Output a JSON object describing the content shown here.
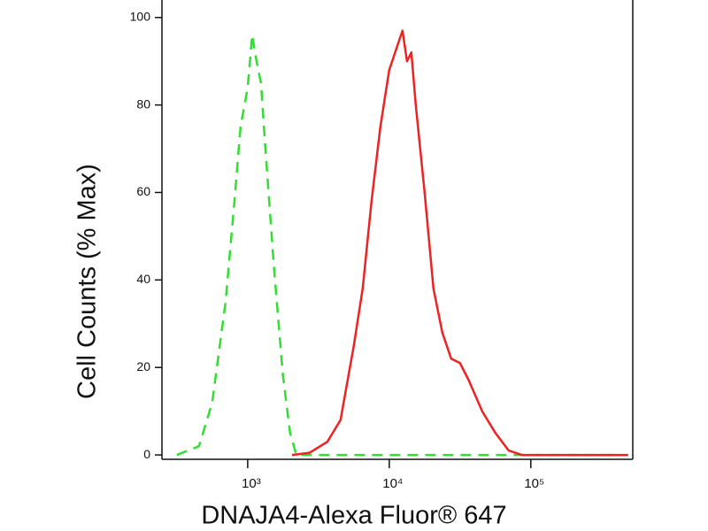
{
  "chart_data": {
    "type": "line",
    "xlabel": "DNAJA4-Alexa Fluor® 647",
    "ylabel": "Cell Counts (% Max)",
    "xscale": "log",
    "xlim": [
      248,
      525000
    ],
    "ylim": [
      -1,
      104
    ],
    "xticks": [
      {
        "value": 1000,
        "label": "10³"
      },
      {
        "value": 10000,
        "label": "10⁴"
      },
      {
        "value": 100000,
        "label": "10⁵"
      }
    ],
    "yticks": [
      0,
      20,
      40,
      60,
      80,
      100
    ],
    "series": [
      {
        "color": "#33dd33",
        "linestyle": "dashed",
        "x": [
          316,
          453,
          562,
          698,
          806,
          891,
          1000,
          1075,
          1155,
          1241,
          1334,
          1540,
          1778,
          1995,
          2207,
          5623,
          421700
        ],
        "values": [
          0,
          2,
          12,
          35,
          58,
          75,
          84,
          96,
          90,
          85,
          70,
          42,
          18,
          5,
          0,
          0,
          0
        ]
      },
      {
        "color": "#ee2222",
        "linestyle": "solid",
        "x": [
          2054,
          2738,
          3652,
          4530,
          5623,
          6494,
          7499,
          8660,
          10000,
          11550,
          12410,
          13340,
          14330,
          15400,
          17780,
          20540,
          23710,
          27380,
          31620,
          36520,
          45320,
          56230,
          69780,
          86600,
          487000
        ],
        "values": [
          0,
          0.5,
          3,
          8,
          25,
          38,
          58,
          75,
          88,
          94,
          97,
          90,
          92,
          80,
          60,
          38,
          28,
          22,
          21,
          17,
          10,
          5,
          1,
          0,
          0
        ]
      }
    ]
  }
}
